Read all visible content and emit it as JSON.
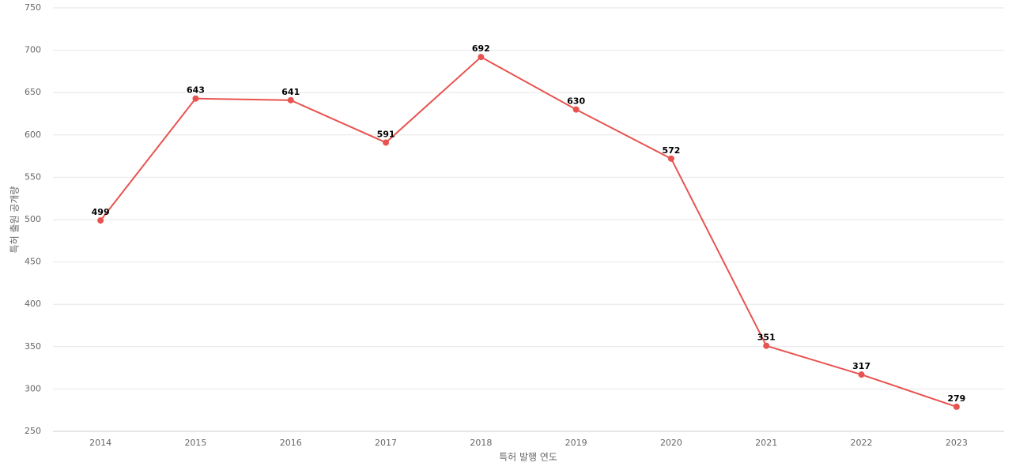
{
  "chart_data": {
    "type": "line",
    "x_label": "특허 발행 연도",
    "y_label": "특허 출원 공개량",
    "categories": [
      "2014",
      "2015",
      "2016",
      "2017",
      "2018",
      "2019",
      "2020",
      "2021",
      "2022",
      "2023"
    ],
    "values": [
      499,
      643,
      641,
      591,
      692,
      630,
      572,
      351,
      317,
      279
    ],
    "color": "#e8534f",
    "ylim": [
      250,
      750
    ],
    "yticks": [
      250,
      300,
      350,
      400,
      450,
      500,
      550,
      600,
      650,
      700,
      750
    ],
    "grid": true
  }
}
